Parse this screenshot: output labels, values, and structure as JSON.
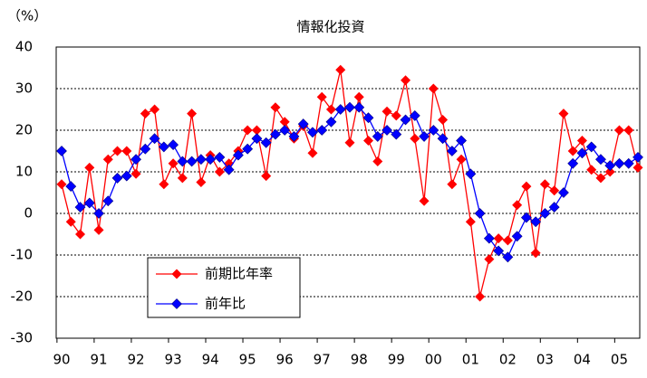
{
  "chart_data": {
    "type": "line",
    "title": "情報化投資",
    "y_label": "（%）",
    "categories": [
      "90",
      null,
      null,
      null,
      "91",
      null,
      null,
      null,
      "92",
      null,
      null,
      null,
      "93",
      null,
      null,
      null,
      "94",
      null,
      null,
      null,
      "95",
      null,
      null,
      null,
      "96",
      null,
      null,
      null,
      "97",
      null,
      null,
      null,
      "98",
      null,
      null,
      null,
      "99",
      null,
      null,
      null,
      "00",
      null,
      null,
      null,
      "01",
      null,
      null,
      null,
      "02",
      null,
      null,
      null,
      "03",
      null,
      null,
      null,
      "04",
      null,
      null,
      null,
      "05",
      null,
      null
    ],
    "series": [
      {
        "name": "前期比年率",
        "color": "#ff0000",
        "values": [
          7,
          -2,
          -5,
          11,
          -4,
          13,
          15,
          15,
          9.5,
          24,
          25,
          7,
          12,
          8.5,
          24,
          7.5,
          14,
          10,
          12,
          15,
          20,
          20,
          9,
          25.5,
          22,
          18,
          21,
          14.5,
          28,
          25,
          34.5,
          17,
          28,
          17.5,
          12.5,
          24.5,
          23.5,
          32,
          18,
          3,
          30,
          22.5,
          7,
          13,
          -2,
          -20,
          -11,
          -6,
          -6.5,
          2,
          6.5,
          -9.5,
          7,
          5.5,
          24,
          15,
          17.5,
          10.5,
          8.5,
          10,
          20,
          20,
          11
        ]
      },
      {
        "name": "前年比",
        "color": "#0000ff",
        "values": [
          15,
          6.5,
          1.5,
          2.5,
          0,
          3,
          8.5,
          9,
          13,
          15.5,
          18,
          16,
          16.5,
          12.5,
          12.5,
          13,
          13,
          13.5,
          10.5,
          14,
          15.5,
          18,
          17,
          19,
          20,
          18.5,
          21.5,
          19.5,
          20,
          22,
          25,
          25.5,
          25.5,
          23,
          18.5,
          20,
          19,
          22.5,
          23.5,
          18.5,
          20,
          18,
          15,
          17.5,
          9.5,
          0,
          -6,
          -9,
          -10.5,
          -5.5,
          -1,
          -2,
          0,
          1.5,
          5,
          12,
          14.5,
          16,
          13,
          11.5,
          12,
          12,
          13.5
        ]
      }
    ],
    "ylim": [
      -30,
      40
    ],
    "yticks": [
      -30,
      -20,
      -10,
      0,
      10,
      20,
      30,
      40
    ],
    "grid": true
  }
}
